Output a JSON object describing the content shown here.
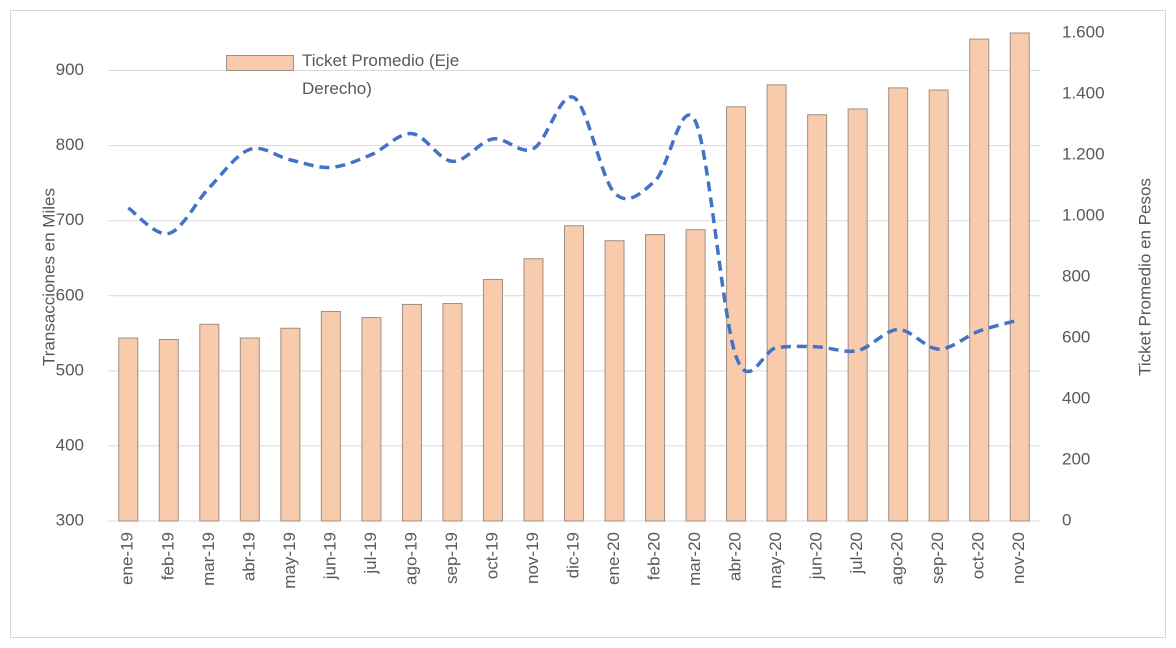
{
  "chart_data": {
    "type": "bar_line",
    "y_label": "Transacciones en Miles",
    "y2_label": "Ticket Promedio en Pesos",
    "categories": [
      "ene-19",
      "feb-19",
      "mar-19",
      "abr-19",
      "may-19",
      "jun-19",
      "jul-19",
      "ago-19",
      "sep-19",
      "oct-19",
      "nov-19",
      "dic-19",
      "ene-20",
      "feb-20",
      "mar-20",
      "abr-20",
      "may-20",
      "jun-20",
      "jul-20",
      "ago-20",
      "sep-20",
      "oct-20",
      "nov-20"
    ],
    "series": [
      {
        "name": "Ticket Promedio (Eje Derecho)",
        "type": "bar",
        "axis": "y2",
        "color": "#f8cbad",
        "values": [
          600,
          595,
          645,
          600,
          632,
          687,
          667,
          710,
          713,
          792,
          860,
          968,
          919,
          939,
          955,
          1358,
          1430,
          1332,
          1351,
          1420,
          1413,
          1580,
          1600
        ]
      },
      {
        "type": "line",
        "axis": "y",
        "color": "#4472c4",
        "dashed": true,
        "values": [
          717,
          683,
          744,
          795,
          781,
          771,
          788,
          816,
          779,
          809,
          796,
          864,
          737,
          753,
          832,
          519,
          531,
          532,
          527,
          555,
          529,
          553,
          568
        ]
      }
    ],
    "ylim": [
      300,
      950
    ],
    "yticks": [
      300,
      400,
      500,
      600,
      700,
      800,
      900
    ],
    "y2lim": [
      0,
      1600
    ],
    "y2ticks": [
      0,
      200,
      400,
      600,
      800,
      {
        "value": 1000,
        "label": "1.000"
      },
      {
        "value": 1200,
        "label": "1.200"
      },
      {
        "value": 1400,
        "label": "1.400"
      },
      {
        "value": 1600,
        "label": "1.600"
      }
    ],
    "grid": true
  }
}
